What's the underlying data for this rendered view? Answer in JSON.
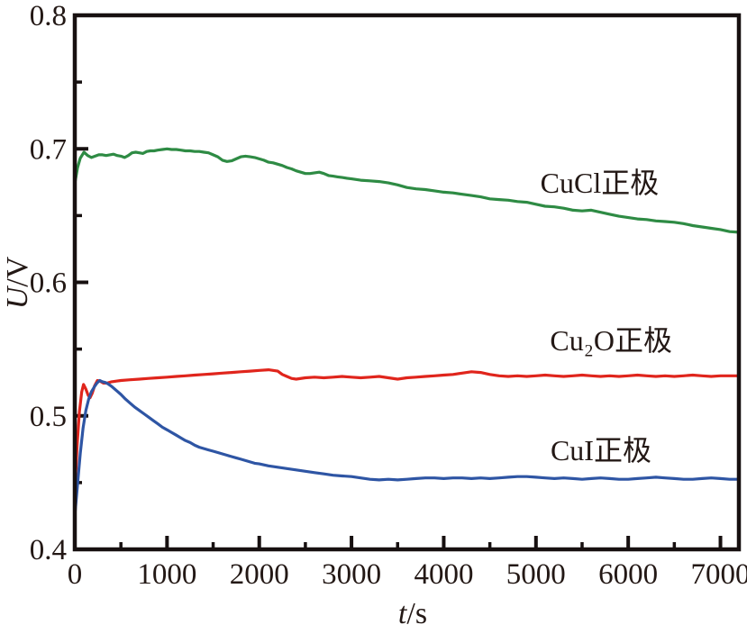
{
  "figure": {
    "background": "#ffffff",
    "text_color": "#231815",
    "axis_color": "#171010"
  },
  "chart_data": {
    "type": "line",
    "title": "",
    "xlabel": "t/s",
    "ylabel": "U/V",
    "xlim": [
      0,
      7200
    ],
    "ylim": [
      0.4,
      0.8
    ],
    "grid": false,
    "legend_position": "inline-labels-right-of-curves",
    "x_major_ticks": [
      0,
      1000,
      2000,
      3000,
      4000,
      5000,
      6000,
      7000
    ],
    "x_tick_labels": [
      "0",
      "1000",
      "2000",
      "3000",
      "4000",
      "5000",
      "6000",
      "7000"
    ],
    "x_minor_step": 500,
    "y_major_ticks": [
      0.4,
      0.5,
      0.6,
      0.7,
      0.8
    ],
    "y_tick_labels": [
      "0.4",
      "0.5",
      "0.6",
      "0.7",
      "0.8"
    ],
    "y_minor_step": 0.05,
    "series": [
      {
        "name": "CuCl正极",
        "color": "#2e8b44",
        "label_anchor": {
          "t": 5690,
          "v": 0.6745
        },
        "points": [
          [
            0,
            0.674
          ],
          [
            30,
            0.686
          ],
          [
            60,
            0.693
          ],
          [
            100,
            0.6975
          ],
          [
            140,
            0.695
          ],
          [
            180,
            0.6935
          ],
          [
            220,
            0.6945
          ],
          [
            260,
            0.6955
          ],
          [
            300,
            0.6955
          ],
          [
            340,
            0.695
          ],
          [
            380,
            0.6955
          ],
          [
            420,
            0.696
          ],
          [
            460,
            0.695
          ],
          [
            500,
            0.6945
          ],
          [
            540,
            0.6935
          ],
          [
            580,
            0.695
          ],
          [
            620,
            0.697
          ],
          [
            660,
            0.6975
          ],
          [
            700,
            0.697
          ],
          [
            740,
            0.6965
          ],
          [
            780,
            0.698
          ],
          [
            820,
            0.6985
          ],
          [
            860,
            0.6985
          ],
          [
            900,
            0.699
          ],
          [
            950,
            0.6995
          ],
          [
            1000,
            0.7
          ],
          [
            1050,
            0.6995
          ],
          [
            1100,
            0.6995
          ],
          [
            1150,
            0.699
          ],
          [
            1200,
            0.6985
          ],
          [
            1250,
            0.6985
          ],
          [
            1300,
            0.698
          ],
          [
            1350,
            0.698
          ],
          [
            1400,
            0.6975
          ],
          [
            1450,
            0.697
          ],
          [
            1500,
            0.6955
          ],
          [
            1550,
            0.694
          ],
          [
            1600,
            0.6915
          ],
          [
            1650,
            0.6905
          ],
          [
            1700,
            0.691
          ],
          [
            1750,
            0.6925
          ],
          [
            1800,
            0.694
          ],
          [
            1850,
            0.6945
          ],
          [
            1900,
            0.694
          ],
          [
            1950,
            0.6935
          ],
          [
            2000,
            0.6925
          ],
          [
            2050,
            0.6915
          ],
          [
            2100,
            0.69
          ],
          [
            2150,
            0.6895
          ],
          [
            2200,
            0.6885
          ],
          [
            2250,
            0.6875
          ],
          [
            2300,
            0.686
          ],
          [
            2350,
            0.685
          ],
          [
            2400,
            0.6835
          ],
          [
            2450,
            0.6825
          ],
          [
            2500,
            0.6815
          ],
          [
            2550,
            0.6815
          ],
          [
            2600,
            0.682
          ],
          [
            2650,
            0.6825
          ],
          [
            2700,
            0.6815
          ],
          [
            2750,
            0.68
          ],
          [
            2800,
            0.6795
          ],
          [
            2850,
            0.679
          ],
          [
            2900,
            0.6785
          ],
          [
            2950,
            0.678
          ],
          [
            3000,
            0.6775
          ],
          [
            3100,
            0.6765
          ],
          [
            3200,
            0.676
          ],
          [
            3300,
            0.6755
          ],
          [
            3400,
            0.6745
          ],
          [
            3500,
            0.673
          ],
          [
            3600,
            0.671
          ],
          [
            3700,
            0.67
          ],
          [
            3800,
            0.6695
          ],
          [
            3900,
            0.6685
          ],
          [
            4000,
            0.6675
          ],
          [
            4100,
            0.667
          ],
          [
            4200,
            0.666
          ],
          [
            4300,
            0.665
          ],
          [
            4400,
            0.664
          ],
          [
            4500,
            0.6625
          ],
          [
            4600,
            0.662
          ],
          [
            4700,
            0.6615
          ],
          [
            4800,
            0.6605
          ],
          [
            4900,
            0.66
          ],
          [
            5000,
            0.6585
          ],
          [
            5100,
            0.657
          ],
          [
            5200,
            0.6565
          ],
          [
            5300,
            0.6555
          ],
          [
            5400,
            0.654
          ],
          [
            5500,
            0.6535
          ],
          [
            5600,
            0.654
          ],
          [
            5700,
            0.6525
          ],
          [
            5800,
            0.651
          ],
          [
            5900,
            0.6495
          ],
          [
            6000,
            0.6485
          ],
          [
            6100,
            0.6475
          ],
          [
            6200,
            0.647
          ],
          [
            6300,
            0.646
          ],
          [
            6400,
            0.6455
          ],
          [
            6500,
            0.645
          ],
          [
            6600,
            0.644
          ],
          [
            6700,
            0.6425
          ],
          [
            6800,
            0.6415
          ],
          [
            6900,
            0.6405
          ],
          [
            7000,
            0.6395
          ],
          [
            7100,
            0.638
          ],
          [
            7200,
            0.6375
          ]
        ]
      },
      {
        "name": "Cu₂O正极",
        "color": "#e0251c",
        "label_anchor": {
          "t": 5815,
          "v": 0.5565
        },
        "points": [
          [
            0,
            0.443
          ],
          [
            25,
            0.478
          ],
          [
            50,
            0.503
          ],
          [
            75,
            0.518
          ],
          [
            95,
            0.5235
          ],
          [
            120,
            0.52
          ],
          [
            145,
            0.5155
          ],
          [
            165,
            0.5135
          ],
          [
            190,
            0.517
          ],
          [
            215,
            0.5225
          ],
          [
            245,
            0.5265
          ],
          [
            275,
            0.526
          ],
          [
            310,
            0.5245
          ],
          [
            350,
            0.5245
          ],
          [
            400,
            0.5255
          ],
          [
            450,
            0.526
          ],
          [
            500,
            0.5265
          ],
          [
            600,
            0.527
          ],
          [
            700,
            0.5275
          ],
          [
            800,
            0.528
          ],
          [
            900,
            0.5285
          ],
          [
            1000,
            0.529
          ],
          [
            1100,
            0.5295
          ],
          [
            1200,
            0.53
          ],
          [
            1300,
            0.5305
          ],
          [
            1400,
            0.531
          ],
          [
            1500,
            0.5315
          ],
          [
            1600,
            0.532
          ],
          [
            1700,
            0.5325
          ],
          [
            1800,
            0.533
          ],
          [
            1900,
            0.5335
          ],
          [
            2000,
            0.534
          ],
          [
            2100,
            0.5345
          ],
          [
            2200,
            0.5335
          ],
          [
            2250,
            0.531
          ],
          [
            2300,
            0.5295
          ],
          [
            2350,
            0.528
          ],
          [
            2400,
            0.5275
          ],
          [
            2500,
            0.5285
          ],
          [
            2600,
            0.529
          ],
          [
            2700,
            0.5285
          ],
          [
            2800,
            0.529
          ],
          [
            2900,
            0.5295
          ],
          [
            3000,
            0.529
          ],
          [
            3100,
            0.5285
          ],
          [
            3200,
            0.529
          ],
          [
            3300,
            0.5295
          ],
          [
            3400,
            0.5285
          ],
          [
            3500,
            0.5275
          ],
          [
            3600,
            0.5285
          ],
          [
            3700,
            0.529
          ],
          [
            3800,
            0.5295
          ],
          [
            3900,
            0.53
          ],
          [
            4000,
            0.5305
          ],
          [
            4100,
            0.531
          ],
          [
            4200,
            0.532
          ],
          [
            4300,
            0.533
          ],
          [
            4400,
            0.5325
          ],
          [
            4500,
            0.531
          ],
          [
            4600,
            0.53
          ],
          [
            4700,
            0.5295
          ],
          [
            4800,
            0.53
          ],
          [
            4900,
            0.5295
          ],
          [
            5000,
            0.53
          ],
          [
            5100,
            0.5305
          ],
          [
            5200,
            0.53
          ],
          [
            5300,
            0.5295
          ],
          [
            5400,
            0.53
          ],
          [
            5500,
            0.5305
          ],
          [
            5600,
            0.53
          ],
          [
            5700,
            0.5295
          ],
          [
            5800,
            0.53
          ],
          [
            5900,
            0.5295
          ],
          [
            6000,
            0.53
          ],
          [
            6100,
            0.5305
          ],
          [
            6200,
            0.53
          ],
          [
            6300,
            0.5295
          ],
          [
            6400,
            0.53
          ],
          [
            6500,
            0.5295
          ],
          [
            6600,
            0.53
          ],
          [
            6700,
            0.5305
          ],
          [
            6800,
            0.53
          ],
          [
            6900,
            0.5295
          ],
          [
            7000,
            0.53
          ],
          [
            7100,
            0.53
          ],
          [
            7200,
            0.53
          ]
        ]
      },
      {
        "name": "CuI正极",
        "color": "#2e55a4",
        "label_anchor": {
          "t": 5705,
          "v": 0.4742
        },
        "points": [
          [
            0,
            0.425
          ],
          [
            30,
            0.449
          ],
          [
            60,
            0.472
          ],
          [
            90,
            0.491
          ],
          [
            120,
            0.504
          ],
          [
            150,
            0.5125
          ],
          [
            180,
            0.518
          ],
          [
            210,
            0.5215
          ],
          [
            240,
            0.5245
          ],
          [
            270,
            0.5265
          ],
          [
            300,
            0.5255
          ],
          [
            330,
            0.525
          ],
          [
            360,
            0.524
          ],
          [
            400,
            0.522
          ],
          [
            450,
            0.519
          ],
          [
            500,
            0.516
          ],
          [
            550,
            0.5125
          ],
          [
            600,
            0.5095
          ],
          [
            650,
            0.5065
          ],
          [
            700,
            0.504
          ],
          [
            750,
            0.5015
          ],
          [
            800,
            0.499
          ],
          [
            850,
            0.4965
          ],
          [
            900,
            0.494
          ],
          [
            950,
            0.4915
          ],
          [
            1000,
            0.4895
          ],
          [
            1050,
            0.4875
          ],
          [
            1100,
            0.4855
          ],
          [
            1150,
            0.4835
          ],
          [
            1200,
            0.4815
          ],
          [
            1250,
            0.48
          ],
          [
            1300,
            0.478
          ],
          [
            1350,
            0.4765
          ],
          [
            1400,
            0.4755
          ],
          [
            1450,
            0.4745
          ],
          [
            1500,
            0.4735
          ],
          [
            1550,
            0.4725
          ],
          [
            1600,
            0.4715
          ],
          [
            1650,
            0.4705
          ],
          [
            1700,
            0.4695
          ],
          [
            1750,
            0.4685
          ],
          [
            1800,
            0.4675
          ],
          [
            1850,
            0.4665
          ],
          [
            1900,
            0.4655
          ],
          [
            1950,
            0.4645
          ],
          [
            2000,
            0.464
          ],
          [
            2100,
            0.4625
          ],
          [
            2200,
            0.4615
          ],
          [
            2300,
            0.4605
          ],
          [
            2400,
            0.4595
          ],
          [
            2500,
            0.4585
          ],
          [
            2600,
            0.4575
          ],
          [
            2700,
            0.4565
          ],
          [
            2800,
            0.4555
          ],
          [
            2900,
            0.455
          ],
          [
            3000,
            0.4545
          ],
          [
            3100,
            0.4535
          ],
          [
            3200,
            0.4525
          ],
          [
            3300,
            0.452
          ],
          [
            3400,
            0.4525
          ],
          [
            3500,
            0.452
          ],
          [
            3600,
            0.4525
          ],
          [
            3700,
            0.453
          ],
          [
            3800,
            0.4535
          ],
          [
            3900,
            0.4535
          ],
          [
            4000,
            0.453
          ],
          [
            4100,
            0.4535
          ],
          [
            4200,
            0.4535
          ],
          [
            4300,
            0.453
          ],
          [
            4400,
            0.4535
          ],
          [
            4500,
            0.453
          ],
          [
            4600,
            0.4535
          ],
          [
            4700,
            0.454
          ],
          [
            4800,
            0.4545
          ],
          [
            4900,
            0.4545
          ],
          [
            5000,
            0.454
          ],
          [
            5100,
            0.4535
          ],
          [
            5200,
            0.453
          ],
          [
            5300,
            0.4535
          ],
          [
            5400,
            0.453
          ],
          [
            5500,
            0.4525
          ],
          [
            5600,
            0.453
          ],
          [
            5700,
            0.4535
          ],
          [
            5800,
            0.453
          ],
          [
            5900,
            0.4525
          ],
          [
            6000,
            0.4525
          ],
          [
            6100,
            0.453
          ],
          [
            6200,
            0.4535
          ],
          [
            6300,
            0.454
          ],
          [
            6400,
            0.4535
          ],
          [
            6500,
            0.453
          ],
          [
            6600,
            0.4525
          ],
          [
            6700,
            0.4525
          ],
          [
            6800,
            0.453
          ],
          [
            6900,
            0.4535
          ],
          [
            7000,
            0.453
          ],
          [
            7100,
            0.4525
          ],
          [
            7200,
            0.4525
          ]
        ]
      }
    ]
  }
}
